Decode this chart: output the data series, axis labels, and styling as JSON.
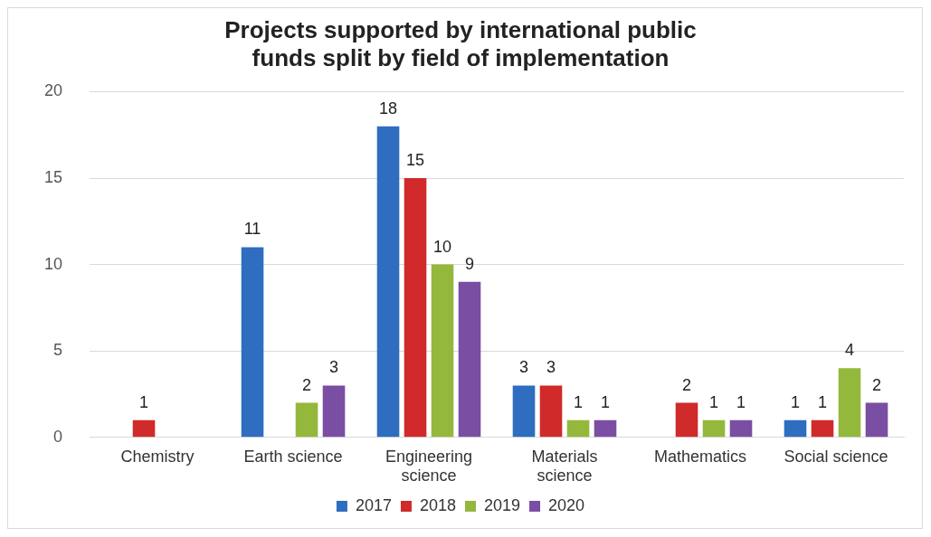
{
  "chart_data": {
    "type": "bar",
    "title": "Projects supported by international public funds split by field of implementation",
    "categories": [
      "Chemistry",
      "Earth science",
      "Engineering science",
      "Materials science",
      "Mathematics",
      "Social science"
    ],
    "series": [
      {
        "name": "2017",
        "color": "#2e6dbf",
        "values": [
          null,
          11,
          18,
          3,
          null,
          1
        ]
      },
      {
        "name": "2018",
        "color": "#d02a2a",
        "values": [
          1,
          null,
          15,
          3,
          2,
          1
        ]
      },
      {
        "name": "2019",
        "color": "#94b83c",
        "values": [
          null,
          2,
          10,
          1,
          1,
          4
        ]
      },
      {
        "name": "2020",
        "color": "#7a4ea3",
        "values": [
          null,
          3,
          9,
          1,
          1,
          2
        ]
      }
    ],
    "ylim": [
      0,
      20
    ],
    "yticks": [
      0,
      5,
      10,
      15,
      20
    ],
    "grid": "y",
    "legend": "bottom",
    "data_labels": true
  }
}
